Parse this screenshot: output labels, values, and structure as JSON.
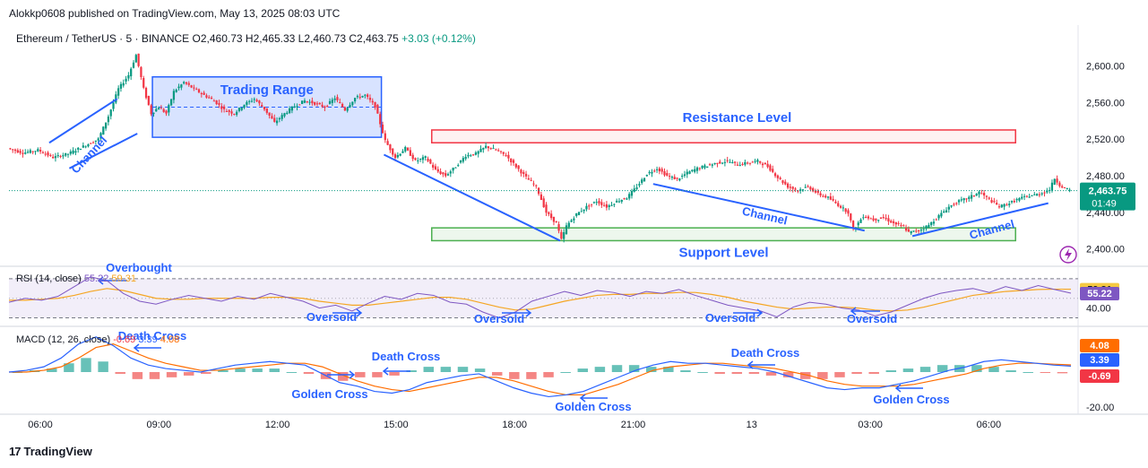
{
  "header": {
    "publisher": "Alokkp0608 published on TradingView.com, May 13, 2025 08:03 UTC",
    "symbol": "Ethereum / TetherUS · 5 · BINANCE",
    "ohlc": {
      "open": "O2,460.73",
      "high": "H2,465.33",
      "low": "L2,460.73",
      "close": "C2,463.75",
      "change": "+3.03 (+0.12%)"
    }
  },
  "brand": {
    "logo": "17",
    "name": "TradingView"
  },
  "colors": {
    "up": "#089981",
    "down": "#f23645",
    "annotation": "#2962ff",
    "resistance": "#f23645",
    "support": "#4caf50",
    "rsi": "#7e57c2",
    "rsi_ma": "#f5a623",
    "macd": "#2962ff",
    "signal": "#ff6d00"
  },
  "chart_data": [
    {
      "type": "candlestick",
      "title": "Ethereum / TetherUS · 5 · BINANCE",
      "x_ticks": [
        "06:00",
        "09:00",
        "12:00",
        "15:00",
        "18:00",
        "21:00",
        "13",
        "03:00",
        "06:00"
      ],
      "y_ticks": [
        "2,600.00",
        "2,560.00",
        "2,520.00",
        "2,480.00",
        "2,440.00",
        "2,400.00"
      ],
      "ylim": [
        2382,
        2625
      ],
      "last_price": "2,463.75",
      "countdown": "01:49",
      "price_path": [
        [
          0,
          2510
        ],
        [
          6,
          2505
        ],
        [
          12,
          2508
        ],
        [
          18,
          2500
        ],
        [
          24,
          2504
        ],
        [
          30,
          2512
        ],
        [
          36,
          2520
        ],
        [
          40,
          2545
        ],
        [
          44,
          2575
        ],
        [
          48,
          2590
        ],
        [
          51,
          2612
        ],
        [
          54,
          2575
        ],
        [
          57,
          2548
        ],
        [
          60,
          2555
        ],
        [
          63,
          2548
        ],
        [
          66,
          2572
        ],
        [
          70,
          2582
        ],
        [
          74,
          2575
        ],
        [
          78,
          2568
        ],
        [
          82,
          2562
        ],
        [
          86,
          2552
        ],
        [
          90,
          2548
        ],
        [
          94,
          2558
        ],
        [
          98,
          2564
        ],
        [
          102,
          2553
        ],
        [
          106,
          2538
        ],
        [
          110,
          2548
        ],
        [
          114,
          2556
        ],
        [
          118,
          2562
        ],
        [
          122,
          2559
        ],
        [
          126,
          2555
        ],
        [
          130,
          2565
        ],
        [
          134,
          2552
        ],
        [
          138,
          2565
        ],
        [
          142,
          2568
        ],
        [
          146,
          2556
        ],
        [
          150,
          2518
        ],
        [
          154,
          2500
        ],
        [
          158,
          2510
        ],
        [
          162,
          2496
        ],
        [
          166,
          2500
        ],
        [
          170,
          2486
        ],
        [
          174,
          2480
        ],
        [
          178,
          2490
        ],
        [
          182,
          2502
        ],
        [
          186,
          2504
        ],
        [
          190,
          2512
        ],
        [
          194,
          2508
        ],
        [
          198,
          2502
        ],
        [
          202,
          2490
        ],
        [
          206,
          2478
        ],
        [
          210,
          2468
        ],
        [
          214,
          2440
        ],
        [
          218,
          2428
        ],
        [
          220,
          2410
        ],
        [
          222,
          2425
        ],
        [
          226,
          2438
        ],
        [
          230,
          2446
        ],
        [
          234,
          2452
        ],
        [
          238,
          2446
        ],
        [
          242,
          2452
        ],
        [
          246,
          2456
        ],
        [
          250,
          2468
        ],
        [
          254,
          2482
        ],
        [
          258,
          2488
        ],
        [
          262,
          2480
        ],
        [
          266,
          2476
        ],
        [
          270,
          2483
        ],
        [
          274,
          2488
        ],
        [
          278,
          2491
        ],
        [
          282,
          2494
        ],
        [
          286,
          2496
        ],
        [
          290,
          2492
        ],
        [
          294,
          2494
        ],
        [
          298,
          2496
        ],
        [
          302,
          2490
        ],
        [
          306,
          2478
        ],
        [
          310,
          2468
        ],
        [
          314,
          2464
        ],
        [
          318,
          2468
        ],
        [
          322,
          2460
        ],
        [
          326,
          2456
        ],
        [
          330,
          2448
        ],
        [
          334,
          2440
        ],
        [
          336,
          2421
        ],
        [
          340,
          2436
        ],
        [
          344,
          2432
        ],
        [
          348,
          2434
        ],
        [
          352,
          2428
        ],
        [
          356,
          2424
        ],
        [
          358,
          2418
        ],
        [
          362,
          2420
        ],
        [
          366,
          2426
        ],
        [
          370,
          2436
        ],
        [
          374,
          2446
        ],
        [
          378,
          2452
        ],
        [
          382,
          2456
        ],
        [
          386,
          2462
        ],
        [
          390,
          2454
        ],
        [
          394,
          2446
        ],
        [
          398,
          2450
        ],
        [
          402,
          2455
        ],
        [
          406,
          2458
        ],
        [
          410,
          2460
        ],
        [
          414,
          2465
        ],
        [
          416,
          2477
        ],
        [
          418,
          2470
        ],
        [
          420,
          2466
        ],
        [
          422,
          2463.75
        ]
      ],
      "annotations": [
        {
          "kind": "trading-range",
          "text": "Trading Range",
          "x_start": 57,
          "x_end": 148,
          "y_low": 2522,
          "y_high": 2588
        },
        {
          "kind": "resistance",
          "text": "Resistance Level",
          "x_start": 168,
          "x_end": 400,
          "y_low": 2516,
          "y_high": 2530
        },
        {
          "kind": "support",
          "text": "Support Level",
          "x_start": 168,
          "x_end": 400,
          "y_low": 2409,
          "y_high": 2423
        },
        {
          "kind": "channel-label",
          "text": "Channel",
          "x": 33,
          "y": 2500,
          "angle": -47
        },
        {
          "kind": "channel-label",
          "text": "Channel",
          "x": 300,
          "y": 2432,
          "angle": 13
        },
        {
          "kind": "channel-label",
          "text": "Channel",
          "x": 391,
          "y": 2417,
          "angle": -15
        }
      ],
      "trend_lines": [
        [
          [
            16,
            2516
          ],
          [
            43,
            2564
          ]
        ],
        [
          [
            24,
            2488
          ],
          [
            51,
            2526
          ]
        ],
        [
          [
            149,
            2503
          ],
          [
            219,
            2409
          ]
        ],
        [
          [
            256,
            2471
          ],
          [
            340,
            2420
          ]
        ],
        [
          [
            359,
            2414
          ],
          [
            413,
            2450
          ]
        ]
      ]
    },
    {
      "type": "line",
      "title": "RSI (14, close)",
      "label_values": [
        "55.22",
        "59.31"
      ],
      "series": [
        {
          "name": "RSI",
          "values": [
            46,
            50,
            48,
            52,
            62,
            72,
            68,
            55,
            47,
            44,
            49,
            53,
            50,
            47,
            52,
            49,
            55,
            51,
            47,
            40,
            43,
            37,
            45,
            52,
            49,
            55,
            53,
            46,
            44,
            36,
            30,
            36,
            47,
            52,
            57,
            53,
            58,
            56,
            52,
            57,
            55,
            59,
            53,
            48,
            43,
            40,
            37,
            31,
            41,
            46,
            44,
            40,
            38,
            32,
            36,
            43,
            50,
            55,
            58,
            60,
            56,
            62,
            58,
            63,
            59,
            55.22
          ]
        },
        {
          "name": "RSI MA",
          "values": [
            48,
            48,
            49,
            50,
            53,
            57,
            60,
            58,
            54,
            50,
            49,
            49,
            50,
            50,
            50,
            50,
            51,
            51,
            50,
            47,
            45,
            43,
            43,
            45,
            47,
            49,
            51,
            51,
            49,
            45,
            41,
            38,
            39,
            43,
            47,
            50,
            53,
            54,
            54,
            55,
            55,
            56,
            56,
            54,
            51,
            47,
            44,
            41,
            39,
            40,
            41,
            41,
            40,
            38,
            37,
            38,
            41,
            45,
            49,
            53,
            55,
            57,
            58,
            59,
            59.31,
            59.31
          ]
        }
      ],
      "ylim": [
        25,
        80
      ],
      "y_ticks": [
        "40.00"
      ],
      "annotations": [
        "Overbought",
        "Oversold",
        "Oversold",
        "Oversold",
        "Oversold"
      ]
    },
    {
      "type": "line",
      "title": "MACD (12, 26, close)",
      "label_values": [
        "-0.69",
        "3.39",
        "4.08"
      ],
      "series": [
        {
          "name": "MACD",
          "values": [
            0,
            1,
            3,
            8,
            16,
            20,
            15,
            8,
            4,
            2,
            1,
            0,
            2,
            4,
            5,
            6,
            5,
            4,
            -1,
            -6,
            -8,
            -11,
            -12,
            -10,
            -6,
            -4,
            -2,
            -1,
            -5,
            -9,
            -12,
            -14,
            -13,
            -11,
            -7,
            -3,
            1,
            4,
            6,
            5,
            5,
            4,
            3,
            2,
            0,
            -3,
            -6,
            -9,
            -10,
            -9,
            -9,
            -7,
            -5,
            -2,
            1,
            3,
            6,
            7,
            6,
            5,
            4,
            3.39
          ]
        },
        {
          "name": "Signal",
          "values": [
            0,
            0,
            1,
            3,
            8,
            14,
            16,
            12,
            8,
            5,
            3,
            1,
            1,
            2,
            3,
            4,
            5,
            5,
            3,
            -1,
            -5,
            -8,
            -10,
            -11,
            -9,
            -7,
            -5,
            -3,
            -3,
            -5,
            -8,
            -11,
            -13,
            -13,
            -10,
            -7,
            -3,
            1,
            3,
            4,
            5,
            5,
            4,
            3,
            2,
            0,
            -2,
            -5,
            -7,
            -8,
            -8,
            -8,
            -7,
            -5,
            -3,
            -1,
            2,
            4,
            5,
            5,
            4.5,
            4.08
          ]
        },
        {
          "name": "Histogram",
          "values": [
            0,
            1,
            2,
            5,
            8,
            6,
            -1,
            -4,
            -4,
            -3,
            -2,
            -1,
            1,
            2,
            2,
            2,
            0,
            -1,
            -4,
            -5,
            -3,
            -3,
            -2,
            1,
            3,
            3,
            3,
            2,
            -2,
            -4,
            -4,
            -3,
            0,
            2,
            3,
            4,
            4,
            3,
            3,
            1,
            0,
            -1,
            -1,
            -1,
            -2,
            -3,
            -4,
            -4,
            -3,
            -1,
            -1,
            1,
            2,
            3,
            4,
            4,
            4,
            3,
            1,
            0,
            -0.5,
            -0.69
          ]
        }
      ],
      "ylim": [
        -24,
        24
      ],
      "y_ticks": [
        "-20.00"
      ],
      "annotations": [
        "Death Cross",
        "Death Cross",
        "Death Cross",
        "Golden Cross",
        "Golden Cross",
        "Golden Cross"
      ]
    }
  ]
}
